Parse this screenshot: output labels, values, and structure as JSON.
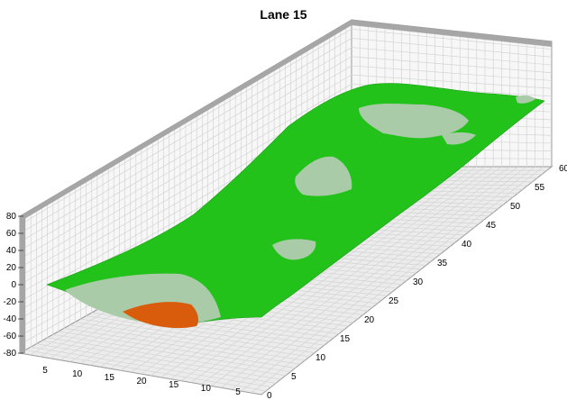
{
  "chart_data": {
    "type": "surface",
    "title": "Lane 15",
    "xlabel": "",
    "ylabel": "",
    "zlabel": "",
    "z_ticks": [
      "80",
      "60",
      "40",
      "20",
      "0",
      "-20",
      "-40",
      "-60",
      "-80"
    ],
    "zlim": [
      -80,
      80
    ],
    "width_ticks_front": [
      "5",
      "10",
      "15",
      "20",
      "15",
      "10",
      "5"
    ],
    "length_ticks_right": [
      "0",
      "5",
      "10",
      "15",
      "20",
      "25",
      "30",
      "35",
      "40",
      "45",
      "50",
      "55",
      "60"
    ],
    "length_range": [
      0,
      60
    ],
    "grid": true,
    "colors": {
      "surface_main": "#22c21a",
      "surface_light": "#a9cba8",
      "surface_low": "#d85c0b",
      "walls": "#b0b0b0",
      "floor": "#e9e9e9",
      "grid": "#d6d6d6"
    }
  }
}
